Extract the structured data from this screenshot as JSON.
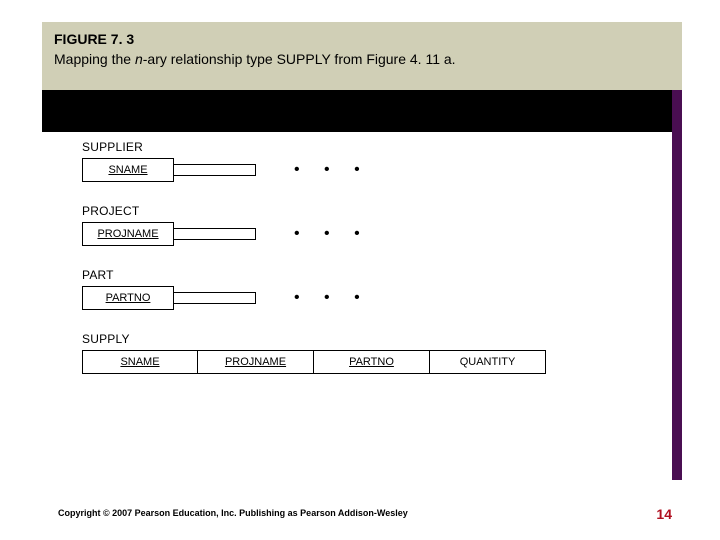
{
  "header": {
    "figure_label": "FIGURE 7. 3",
    "caption_pre": "Mapping the ",
    "caption_ital": "n",
    "caption_post": "-ary relationship type SUPPLY from Figure 4. 11 a.",
    "band_bg": "#d0cfb6",
    "dark_band_bg": "#000000",
    "accent_color": "#4a0e52"
  },
  "schemas": [
    {
      "name": "SUPPLIER",
      "cells": [
        {
          "text": "SNAME",
          "underline": true,
          "width": 92
        },
        {
          "text": "",
          "underline": false,
          "width": 82
        }
      ],
      "trailing_dots": true
    },
    {
      "name": "PROJECT",
      "cells": [
        {
          "text": "PROJNAME",
          "underline": true,
          "width": 92
        },
        {
          "text": "",
          "underline": false,
          "width": 82
        }
      ],
      "trailing_dots": true
    },
    {
      "name": "PART",
      "cells": [
        {
          "text": "PARTNO",
          "underline": true,
          "width": 92
        },
        {
          "text": "",
          "underline": false,
          "width": 82
        }
      ],
      "trailing_dots": true
    },
    {
      "name": "SUPPLY",
      "cells": [
        {
          "text": "SNAME",
          "underline": true,
          "width": 116
        },
        {
          "text": "PROJNAME",
          "underline": true,
          "width": 116
        },
        {
          "text": "PARTNO",
          "underline": true,
          "width": 116
        },
        {
          "text": "QUANTITY",
          "underline": false,
          "width": 116
        }
      ],
      "trailing_dots": false
    }
  ],
  "footer": {
    "copyright": "Copyright © 2007 Pearson Education, Inc. Publishing as Pearson Addison-Wesley",
    "page_number": "14",
    "page_number_color": "#b01020"
  },
  "styling": {
    "cell_border_color": "#000000",
    "cell_font_size": 11,
    "schema_name_font_size": 12,
    "dots_glyph": "• • •"
  }
}
